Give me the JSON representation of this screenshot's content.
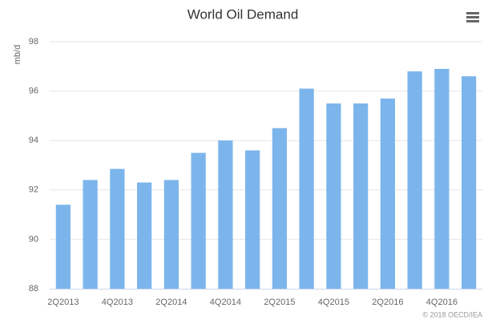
{
  "chart_data": {
    "type": "bar",
    "title": "World Oil Demand",
    "y_label": "mb/d",
    "credit": "© 2018 OECD/IEA",
    "categories": [
      "2Q2013",
      null,
      "4Q2013",
      null,
      "2Q2014",
      null,
      "4Q2014",
      null,
      "2Q2015",
      null,
      "4Q2015",
      null,
      "2Q2016",
      null,
      "4Q2016",
      null
    ],
    "values": [
      91.4,
      92.4,
      92.85,
      92.3,
      92.4,
      93.5,
      94.0,
      93.6,
      94.5,
      96.1,
      95.5,
      95.5,
      95.7,
      96.8,
      96.9,
      96.6
    ],
    "color": "#7cb5ec",
    "ylim": [
      88,
      98
    ],
    "yticks": [
      88,
      90,
      92,
      94,
      96,
      98
    ],
    "grid": true
  }
}
